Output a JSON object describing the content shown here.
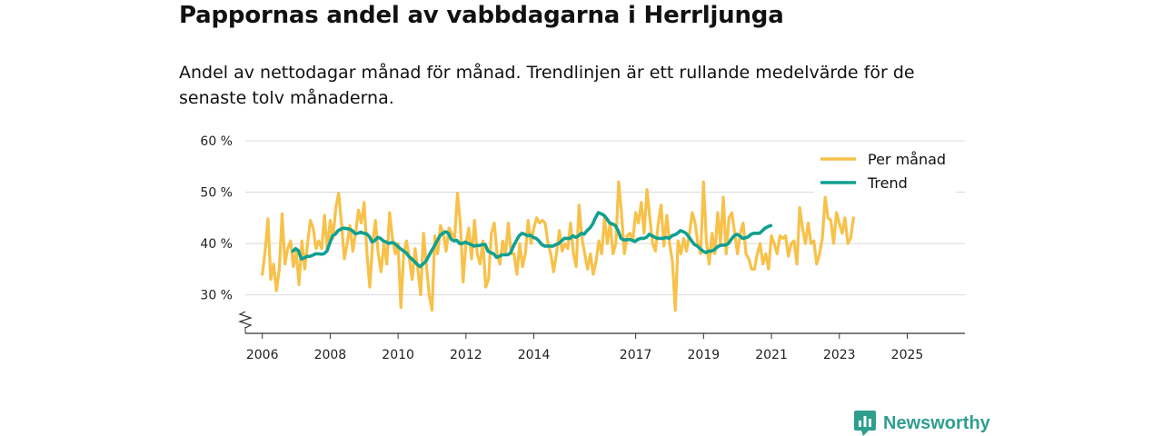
{
  "title": "Pappornas andel av vabbdagarna i Herrljunga",
  "subtitle": "Andel av nettodagar månad för månad. Trendlinjen är ett rullande medelvärde för de senaste tolv månaderna.",
  "brand": {
    "name": "Newsworthy",
    "icon": "newsworthy-logo-icon"
  },
  "colors": {
    "monthly": "#f7c14a",
    "trend": "#11a08f",
    "grid": "#d9d9d9",
    "axis": "#333333"
  },
  "chart_data": {
    "type": "line",
    "title": "Pappornas andel av vabbdagarna i Herrljunga",
    "xlabel": "",
    "ylabel": "",
    "ylim": [
      22.5,
      60
    ],
    "xlim": [
      2005.5,
      2026.7
    ],
    "yticks": [
      30,
      40,
      50,
      60
    ],
    "ytick_labels": [
      "30 %",
      "40 %",
      "50 %",
      "60 %"
    ],
    "xticks": [
      2006,
      2008,
      2010,
      2012,
      2014,
      2017,
      2019,
      2021,
      2023,
      2025
    ],
    "xtick_labels": [
      "2006",
      "2008",
      "2010",
      "2012",
      "2014",
      "2017",
      "2019",
      "2021",
      "2023",
      "2025"
    ],
    "x_start": 2006.0,
    "x_step": 0.08333,
    "legend": [
      "Per månad",
      "Trend"
    ],
    "legend_position": "top-right",
    "axis_break": true,
    "series": [
      {
        "name": "Per månad",
        "values": [
          34.0,
          38.5,
          44.8,
          33.0,
          36.0,
          30.8,
          35.0,
          45.8,
          36.0,
          39.0,
          40.5,
          35.5,
          38.5,
          32.0,
          40.5,
          35.0,
          40.0,
          44.5,
          43.0,
          39.0,
          40.5,
          39.0,
          45.5,
          38.5,
          44.5,
          41.0,
          47.0,
          49.8,
          44.0,
          37.0,
          40.0,
          43.5,
          38.5,
          42.0,
          46.5,
          44.0,
          48.0,
          38.0,
          31.5,
          40.0,
          44.5,
          38.0,
          34.5,
          40.0,
          36.0,
          46.0,
          41.0,
          38.0,
          40.0,
          27.5,
          38.0,
          40.5,
          37.0,
          33.0,
          39.0,
          35.0,
          30.0,
          42.0,
          36.0,
          30.0,
          27.0,
          41.5,
          38.0,
          43.5,
          42.0,
          38.5,
          43.0,
          42.0,
          41.0,
          49.8,
          44.0,
          32.5,
          40.0,
          43.0,
          37.0,
          44.5,
          38.0,
          36.0,
          40.5,
          31.5,
          33.0,
          42.0,
          44.0,
          38.0,
          36.0,
          40.5,
          38.0,
          44.0,
          38.0,
          38.0,
          34.0,
          40.0,
          35.5,
          38.0,
          44.5,
          40.0,
          43.0,
          45.0,
          44.0,
          44.5,
          44.0,
          40.0,
          38.0,
          34.5,
          38.0,
          42.5,
          38.5,
          40.0,
          39.0,
          44.0,
          38.0,
          35.5,
          47.5,
          41.0,
          38.0,
          35.0,
          38.0,
          34.0,
          36.5,
          40.5,
          38.0,
          45.0,
          40.0,
          44.0,
          38.0,
          40.0,
          52.0,
          46.0,
          38.0,
          41.5,
          42.0,
          40.5,
          46.0,
          44.0,
          48.0,
          42.0,
          50.5,
          45.0,
          40.0,
          38.5,
          44.0,
          47.5,
          39.5,
          45.5,
          40.0,
          36.5,
          27.0,
          40.5,
          38.0,
          41.0,
          38.5,
          42.0,
          46.0,
          44.0,
          40.0,
          38.0,
          52.0,
          40.5,
          36.0,
          42.0,
          38.0,
          46.0,
          40.0,
          49.0,
          38.0,
          45.0,
          46.0,
          42.0,
          38.0,
          42.0,
          44.0,
          38.0,
          37.0,
          35.0,
          35.0,
          38.0,
          40.0,
          36.0,
          38.0,
          35.0,
          41.5,
          40.0,
          38.0,
          41.5,
          41.0,
          41.5,
          37.5,
          40.0,
          40.5,
          36.0,
          47.0,
          43.0,
          40.0,
          44.0,
          40.0,
          40.5,
          36.0,
          38.0,
          41.0,
          49.0,
          45.0,
          44.5,
          40.0,
          46.0,
          44.0,
          42.0,
          45.0,
          40.0,
          41.0,
          45.0
        ]
      },
      {
        "name": "Trend",
        "x_start": 2006.9,
        "values": [
          38.5,
          39.0,
          38.6,
          37.0,
          37.2,
          37.5,
          37.5,
          37.7,
          38.0,
          38.0,
          37.9,
          38.0,
          38.5,
          40.0,
          41.5,
          41.8,
          42.5,
          42.8,
          43.0,
          42.9,
          42.8,
          42.5,
          41.9,
          42.0,
          42.2,
          42.0,
          41.9,
          41.4,
          40.3,
          40.6,
          41.2,
          41.0,
          40.5,
          40.3,
          40.0,
          40.2,
          40.0,
          39.5,
          39.0,
          38.6,
          38.2,
          37.5,
          37.0,
          36.5,
          35.9,
          35.5,
          36.0,
          36.5,
          37.5,
          38.5,
          39.5,
          40.5,
          41.5,
          42.0,
          42.3,
          42.0,
          40.8,
          40.5,
          40.6,
          40.0,
          40.0,
          40.3,
          40.0,
          39.8,
          39.5,
          39.6,
          39.6,
          39.8,
          39.8,
          38.5,
          38.2,
          38.0,
          37.3,
          37.5,
          37.8,
          37.8,
          37.8,
          38.2,
          39.5,
          40.5,
          41.5,
          42.0,
          41.8,
          41.5,
          41.6,
          41.2,
          41.0,
          40.5,
          39.8,
          39.5,
          39.5,
          39.5,
          39.5,
          39.8,
          40.0,
          40.5,
          41.0,
          41.0,
          41.0,
          41.5,
          41.2,
          41.5,
          42.0,
          41.8,
          42.5,
          43.0,
          43.8,
          45.0,
          46.0,
          45.8,
          45.5,
          44.8,
          44.0,
          43.8,
          43.5,
          42.5,
          41.0,
          40.7,
          40.7,
          40.8,
          40.6,
          40.4,
          40.8,
          41.0,
          41.0,
          41.2,
          41.8,
          41.5,
          41.2,
          41.0,
          41.0,
          41.0,
          41.2,
          41.0,
          41.5,
          41.7,
          42.0,
          42.5,
          42.3,
          42.0,
          41.3,
          40.5,
          39.8,
          39.5,
          39.0,
          38.5,
          38.2,
          38.5,
          38.5,
          38.8,
          39.3,
          39.6,
          39.7,
          39.7,
          40.0,
          40.8,
          41.5,
          41.8,
          41.5,
          41.0,
          41.1,
          41.3,
          41.8,
          42.0,
          42.0,
          42.0,
          42.5,
          43.0,
          43.3,
          43.5
        ]
      }
    ]
  }
}
